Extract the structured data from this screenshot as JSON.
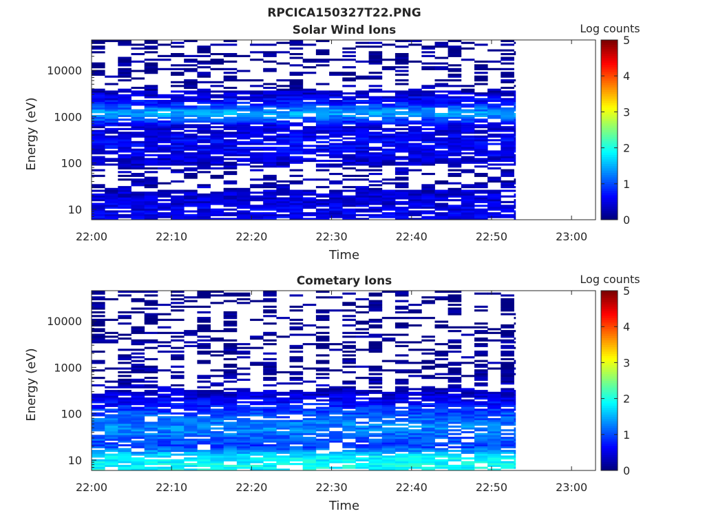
{
  "figure_title": "RPCICA150327T22.PNG",
  "chart_data": [
    {
      "type": "heatmap",
      "title": "Solar Wind Ions",
      "xlabel": "Time",
      "ylabel": "Energy (eV)",
      "x_ticks": [
        "22:00",
        "22:10",
        "22:20",
        "22:30",
        "22:40",
        "22:50",
        "23:00"
      ],
      "x_range_minutes": [
        0,
        63
      ],
      "data_extent_minutes": [
        0,
        53
      ],
      "y_scale": "log",
      "y_range": [
        6,
        45000
      ],
      "y_ticks": [
        {
          "value": 10,
          "label": "10"
        },
        {
          "value": 100,
          "label": "100"
        },
        {
          "value": 1000,
          "label": "1000"
        },
        {
          "value": 10000,
          "label": "10000"
        }
      ],
      "colorbar": {
        "title": "Log counts",
        "range": [
          0,
          5
        ],
        "ticks": [
          "0",
          "1",
          "2",
          "3",
          "4",
          "5"
        ],
        "colormap": "jet"
      },
      "intensity_profile": [
        {
          "energy": 10,
          "log_counts": 0.5
        },
        {
          "energy": 20,
          "log_counts": 0.4
        },
        {
          "energy": 50,
          "log_counts": 0.1
        },
        {
          "energy": 150,
          "log_counts": 0.5
        },
        {
          "energy": 300,
          "log_counts": 0.6
        },
        {
          "energy": 600,
          "log_counts": 0.4
        },
        {
          "energy": 1200,
          "log_counts": 1.5
        },
        {
          "energy": 2000,
          "log_counts": 0.7
        },
        {
          "energy": 5000,
          "log_counts": 0.05
        },
        {
          "energy": 40000,
          "log_counts": 0.05
        }
      ]
    },
    {
      "type": "heatmap",
      "title": "Cometary Ions",
      "xlabel": "Time",
      "ylabel": "Energy (eV)",
      "x_ticks": [
        "22:00",
        "22:10",
        "22:20",
        "22:30",
        "22:40",
        "22:50",
        "23:00"
      ],
      "x_range_minutes": [
        0,
        63
      ],
      "data_extent_minutes": [
        0,
        53
      ],
      "y_scale": "log",
      "y_range": [
        6,
        45000
      ],
      "y_ticks": [
        {
          "value": 10,
          "label": "10"
        },
        {
          "value": 100,
          "label": "100"
        },
        {
          "value": 1000,
          "label": "1000"
        },
        {
          "value": 10000,
          "label": "10000"
        }
      ],
      "colorbar": {
        "title": "Log counts",
        "range": [
          0,
          5
        ],
        "ticks": [
          "0",
          "1",
          "2",
          "3",
          "4",
          "5"
        ],
        "colormap": "jet"
      },
      "intensity_profile": [
        {
          "energy": 8,
          "log_counts": 1.9
        },
        {
          "energy": 12,
          "log_counts": 1.8
        },
        {
          "energy": 20,
          "log_counts": 0.9
        },
        {
          "energy": 50,
          "log_counts": 1.3
        },
        {
          "energy": 100,
          "log_counts": 1.0
        },
        {
          "energy": 250,
          "log_counts": 0.4
        },
        {
          "energy": 600,
          "log_counts": 0.1
        },
        {
          "energy": 2000,
          "log_counts": 0.05
        },
        {
          "energy": 40000,
          "log_counts": 0.0
        }
      ]
    }
  ]
}
